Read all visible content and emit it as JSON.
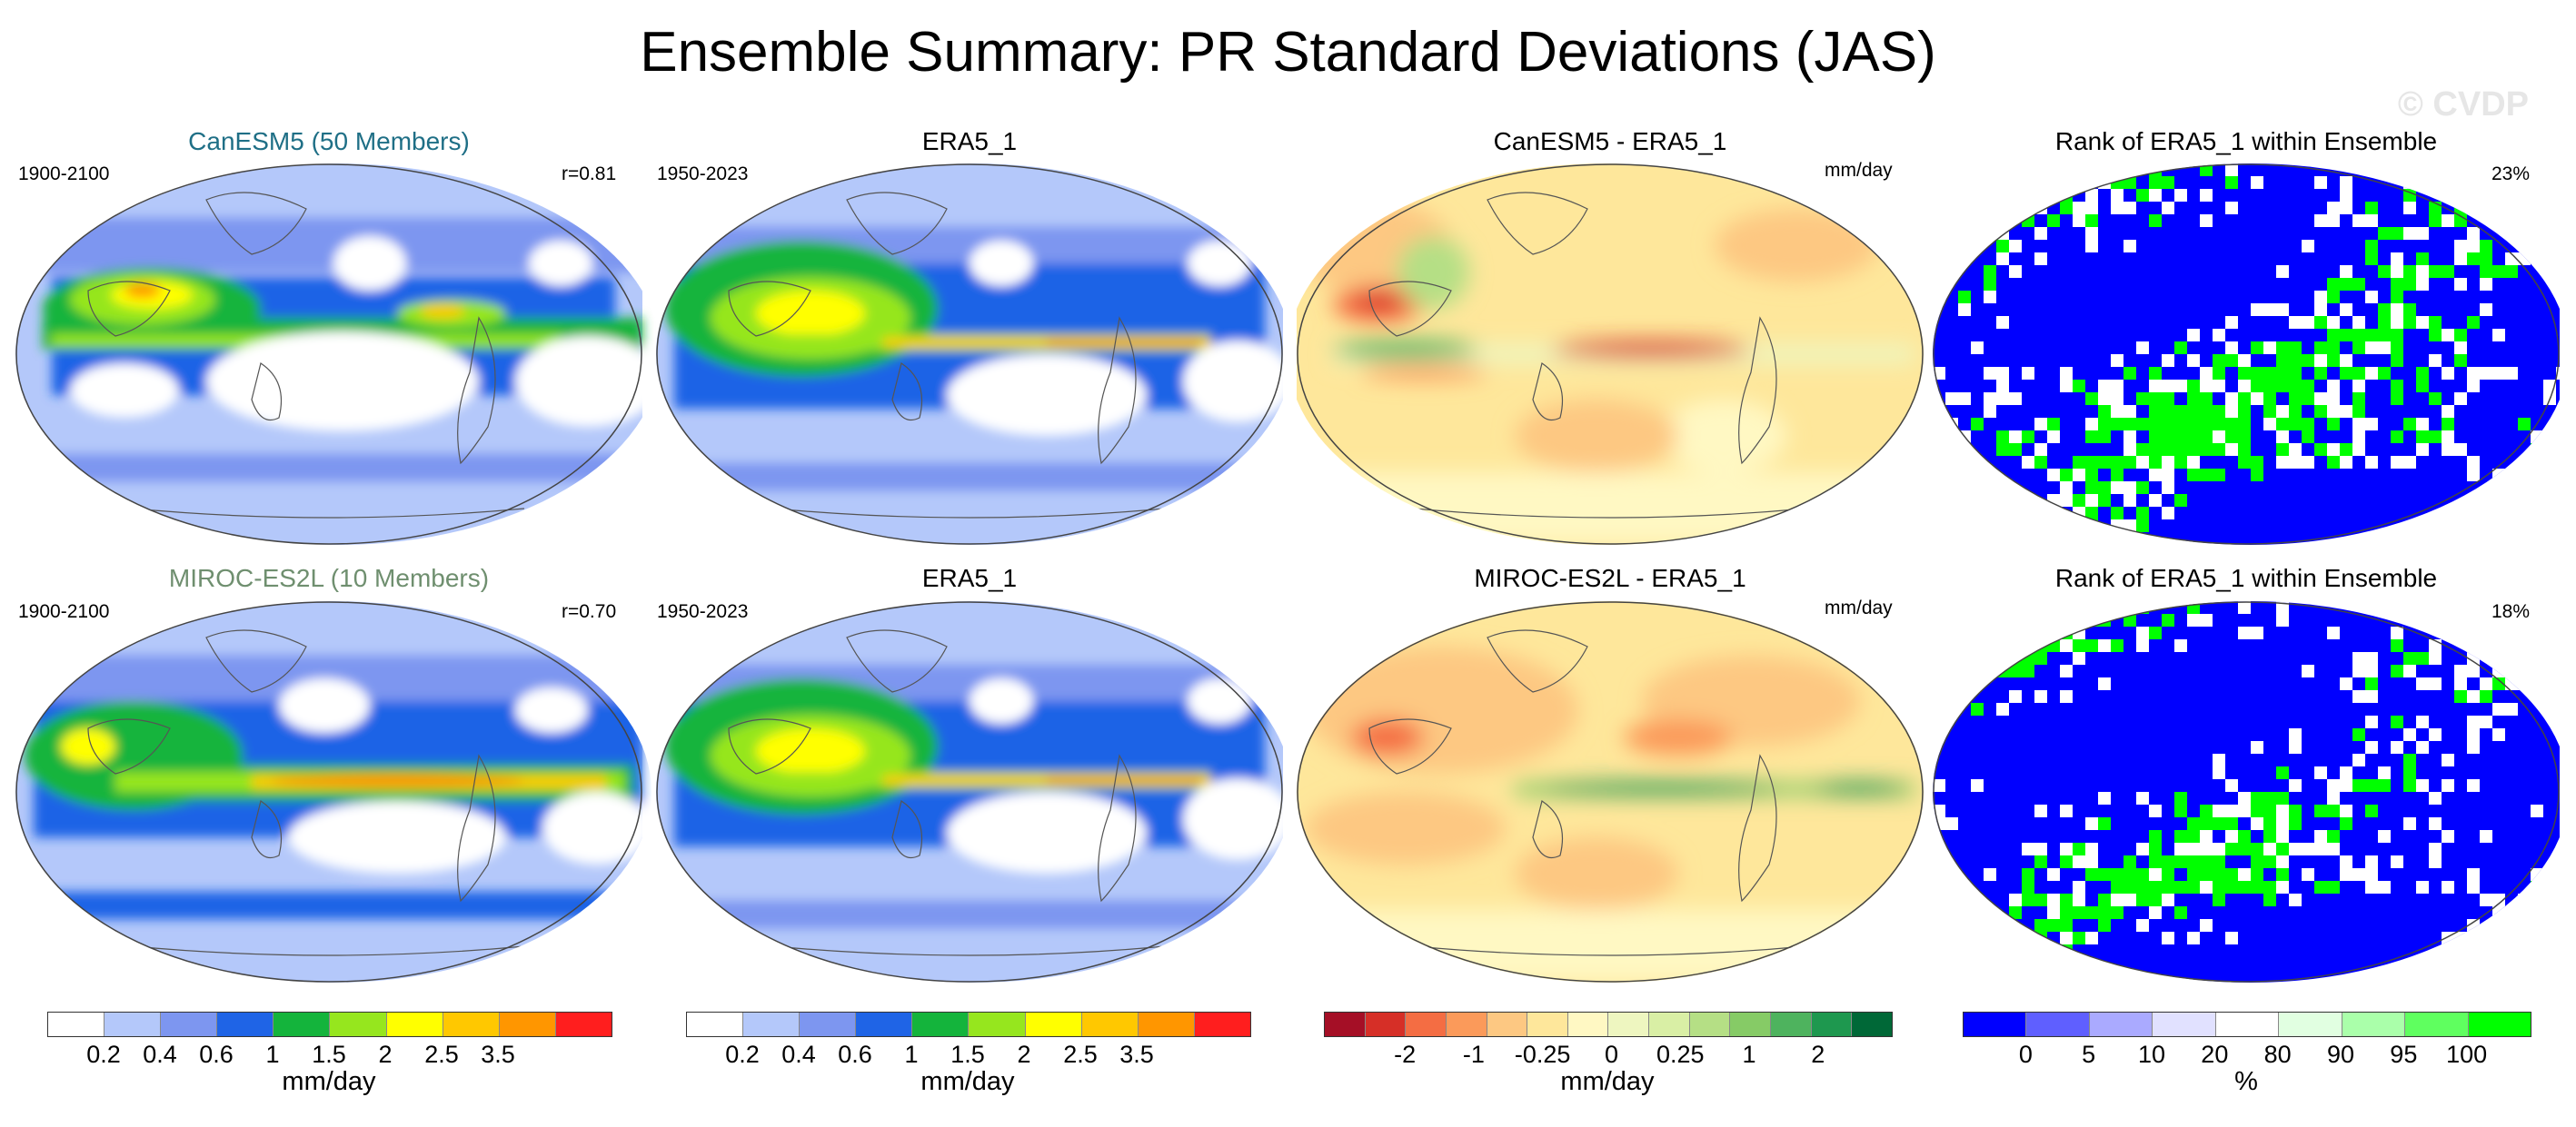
{
  "title": "Ensemble Summary: PR Standard Deviations (JAS)",
  "watermark": "© CVDP",
  "rows": [
    {
      "model_title": "CanESM5 (50 Members)",
      "model_title_color": "#1f6f86",
      "model_period": "1900-2100",
      "pattern_corr": "r=0.81",
      "obs_title": "ERA5_1",
      "obs_period": "1950-2023",
      "diff_title": "CanESM5 - ERA5_1",
      "diff_unit": "mm/day",
      "rank_title": "Rank of ERA5_1 within Ensemble",
      "rank_pct": "23%"
    },
    {
      "model_title": "MIROC-ES2L (10 Members)",
      "model_title_color": "#6f8f6f",
      "model_period": "1900-2100",
      "pattern_corr": "r=0.70",
      "obs_title": "ERA5_1",
      "obs_period": "1950-2023",
      "diff_title": "MIROC-ES2L - ERA5_1",
      "diff_unit": "mm/day",
      "rank_title": "Rank of ERA5_1 within Ensemble",
      "rank_pct": "18%"
    }
  ],
  "colorbars": [
    {
      "colors": [
        "#ffffff",
        "#b4c8fa",
        "#7d96f0",
        "#1f64e6",
        "#14b43c",
        "#96e61e",
        "#ffff00",
        "#ffc800",
        "#ff9600",
        "#ff1e1e"
      ],
      "labels": [
        "0.2",
        "0.4",
        "0.6",
        "1",
        "1.5",
        "2",
        "2.5",
        "3.5"
      ],
      "unit": "mm/day"
    },
    {
      "colors": [
        "#ffffff",
        "#b4c8fa",
        "#7d96f0",
        "#1f64e6",
        "#14b43c",
        "#96e61e",
        "#ffff00",
        "#ffc800",
        "#ff9600",
        "#ff1e1e"
      ],
      "labels": [
        "0.2",
        "0.4",
        "0.6",
        "1",
        "1.5",
        "2",
        "2.5",
        "3.5"
      ],
      "unit": "mm/day"
    },
    {
      "colors": [
        "#a50f26",
        "#d62f27",
        "#f46d43",
        "#fb9a5a",
        "#fdc882",
        "#fee79b",
        "#fff8c3",
        "#eef6c0",
        "#d9efa5",
        "#b5df85",
        "#86cb66",
        "#4eb35e",
        "#1e984f",
        "#006837"
      ],
      "labels": [
        "-2",
        "-1",
        "-0.25",
        "0",
        "0.25",
        "1",
        "2"
      ],
      "unit": "mm/day"
    },
    {
      "colors": [
        "#0000ff",
        "#5f5fff",
        "#aaaaff",
        "#e1e1ff",
        "#ffffff",
        "#e1ffe1",
        "#aaffaa",
        "#5fff5f",
        "#00ff00"
      ],
      "labels": [
        "0",
        "5",
        "10",
        "20",
        "80",
        "90",
        "95",
        "100"
      ],
      "unit": "%"
    }
  ]
}
